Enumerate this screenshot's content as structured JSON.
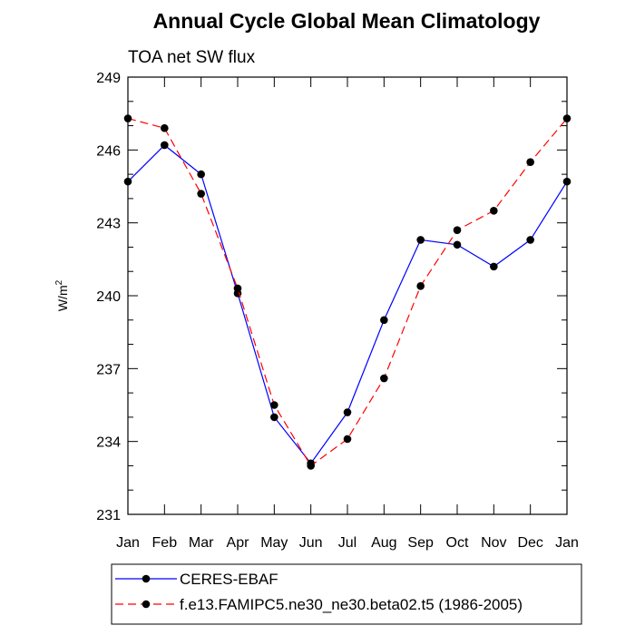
{
  "chart_data": {
    "type": "line",
    "title": "Annual Cycle Global Mean Climatology",
    "subtitle": "TOA net SW flux",
    "ylabel_base": "W/m",
    "ylabel_sup": "2",
    "ylim": [
      231,
      249
    ],
    "yticks": [
      "231",
      "234",
      "237",
      "240",
      "243",
      "246",
      "249"
    ],
    "categories": [
      "Jan",
      "Feb",
      "Mar",
      "Apr",
      "May",
      "Jun",
      "Jul",
      "Aug",
      "Sep",
      "Oct",
      "Nov",
      "Dec",
      "Jan"
    ],
    "series": [
      {
        "name": "CERES-EBAF",
        "color": "#0000ff",
        "dash": "solid",
        "values": [
          244.7,
          246.2,
          245.0,
          240.1,
          235.0,
          233.1,
          235.2,
          239.0,
          242.3,
          242.1,
          241.2,
          242.3,
          244.7
        ]
      },
      {
        "name": "f.e13.FAMIPC5.ne30_ne30.beta02.t5 (1986-2005)",
        "color": "#ff0000",
        "dash": "dashed",
        "values": [
          247.3,
          246.9,
          244.2,
          240.3,
          235.5,
          233.0,
          234.1,
          236.6,
          240.4,
          242.7,
          243.5,
          245.5,
          247.3
        ]
      }
    ],
    "legend_position": "bottom"
  }
}
